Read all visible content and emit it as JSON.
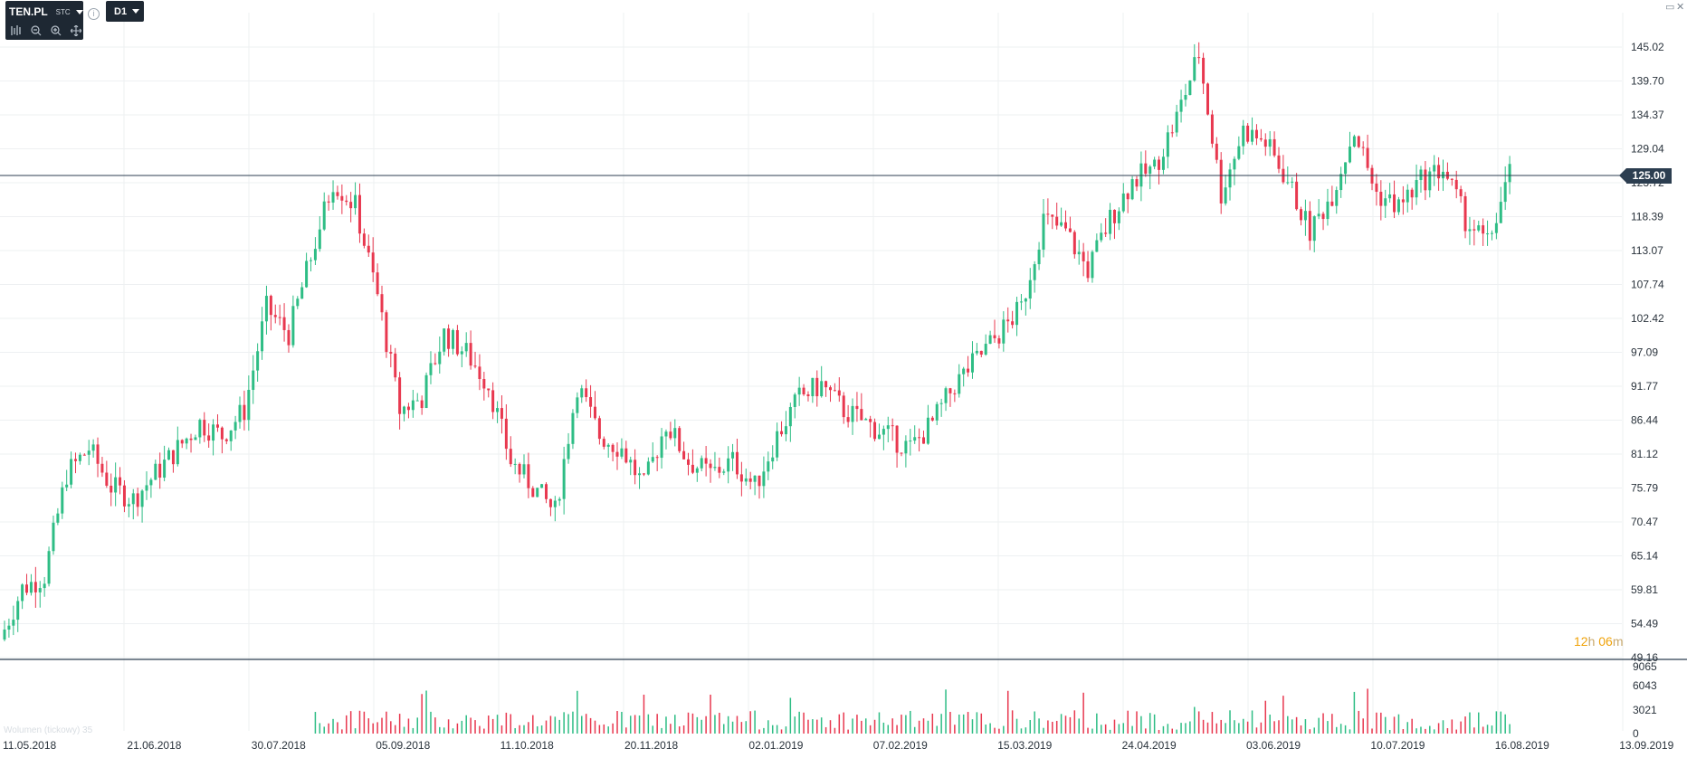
{
  "symbol": {
    "ticker": "TEN.PL",
    "type": "STC"
  },
  "timeframe": "D1",
  "current_price": "125.00",
  "timer": {
    "hours": "12",
    "hours_unit": "h",
    "minutes": "06",
    "minutes_unit": "m"
  },
  "volume_label": "Wolumen (tickowy) 35",
  "price_axis": [
    "145.02",
    "139.70",
    "134.37",
    "129.04",
    "123.72",
    "118.39",
    "113.07",
    "107.74",
    "102.42",
    "97.09",
    "91.77",
    "86.44",
    "81.12",
    "75.79",
    "70.47",
    "65.14",
    "59.81",
    "54.49",
    "49.16"
  ],
  "volume_axis": [
    "9065",
    "6043",
    "3021",
    "0"
  ],
  "date_axis": [
    "11.05.2018",
    "21.06.2018",
    "30.07.2018",
    "05.09.2018",
    "11.10.2018",
    "20.11.2018",
    "02.01.2019",
    "07.02.2019",
    "15.03.2019",
    "24.04.2019",
    "03.06.2019",
    "10.07.2019",
    "16.08.2019",
    "13.09.2019"
  ],
  "colors": {
    "up": "#2ebd85",
    "down": "#e8384f",
    "grid": "#eef0f2",
    "axis_text": "#2a333c",
    "line": "#2c3e50"
  },
  "icons": [
    "chart-type-icon",
    "zoom-out-icon",
    "zoom-in-icon",
    "move-icon",
    "info-icon",
    "minimize-icon",
    "close-icon"
  ],
  "chart_data": {
    "type": "candlestick",
    "price_range": [
      49.16,
      145.02
    ],
    "volume_range": [
      0,
      9065
    ],
    "last_price": 125.0,
    "close_series": [
      {
        "date": "11.05.2018",
        "close": 52
      },
      {
        "date": "18.05.2018",
        "close": 60
      },
      {
        "date": "25.05.2018",
        "close": 62
      },
      {
        "date": "01.06.2018",
        "close": 78
      },
      {
        "date": "08.06.2018",
        "close": 82
      },
      {
        "date": "15.06.2018",
        "close": 76
      },
      {
        "date": "21.06.2018",
        "close": 74
      },
      {
        "date": "28.06.2018",
        "close": 78
      },
      {
        "date": "05.07.2018",
        "close": 82
      },
      {
        "date": "12.07.2018",
        "close": 86
      },
      {
        "date": "19.07.2018",
        "close": 84
      },
      {
        "date": "26.07.2018",
        "close": 88
      },
      {
        "date": "30.07.2018",
        "close": 104
      },
      {
        "date": "06.08.2018",
        "close": 100
      },
      {
        "date": "13.08.2018",
        "close": 112
      },
      {
        "date": "20.08.2018",
        "close": 124
      },
      {
        "date": "27.08.2018",
        "close": 120
      },
      {
        "date": "31.08.2018",
        "close": 106
      },
      {
        "date": "05.09.2018",
        "close": 88
      },
      {
        "date": "12.09.2018",
        "close": 90
      },
      {
        "date": "19.09.2018",
        "close": 100
      },
      {
        "date": "26.09.2018",
        "close": 97
      },
      {
        "date": "03.10.2018",
        "close": 92
      },
      {
        "date": "11.10.2018",
        "close": 80
      },
      {
        "date": "18.10.2018",
        "close": 76
      },
      {
        "date": "25.10.2018",
        "close": 72
      },
      {
        "date": "01.11.2018",
        "close": 92
      },
      {
        "date": "08.11.2018",
        "close": 84
      },
      {
        "date": "15.11.2018",
        "close": 82
      },
      {
        "date": "20.11.2018",
        "close": 76
      },
      {
        "date": "27.11.2018",
        "close": 86
      },
      {
        "date": "04.12.2018",
        "close": 80
      },
      {
        "date": "11.12.2018",
        "close": 78
      },
      {
        "date": "18.12.2018",
        "close": 80
      },
      {
        "date": "25.12.2018",
        "close": 76
      },
      {
        "date": "02.01.2019",
        "close": 84
      },
      {
        "date": "09.01.2019",
        "close": 90
      },
      {
        "date": "16.01.2019",
        "close": 92
      },
      {
        "date": "23.01.2019",
        "close": 88
      },
      {
        "date": "30.01.2019",
        "close": 86
      },
      {
        "date": "07.02.2019",
        "close": 84
      },
      {
        "date": "14.02.2019",
        "close": 82
      },
      {
        "date": "21.02.2019",
        "close": 86
      },
      {
        "date": "28.02.2019",
        "close": 92
      },
      {
        "date": "07.03.2019",
        "close": 96
      },
      {
        "date": "15.03.2019",
        "close": 100
      },
      {
        "date": "22.03.2019",
        "close": 104
      },
      {
        "date": "29.03.2019",
        "close": 118
      },
      {
        "date": "05.04.2019",
        "close": 116
      },
      {
        "date": "12.04.2019",
        "close": 110
      },
      {
        "date": "19.04.2019",
        "close": 118
      },
      {
        "date": "24.04.2019",
        "close": 124
      },
      {
        "date": "01.05.2019",
        "close": 126
      },
      {
        "date": "08.05.2019",
        "close": 134
      },
      {
        "date": "15.05.2019",
        "close": 144
      },
      {
        "date": "22.05.2019",
        "close": 122
      },
      {
        "date": "29.05.2019",
        "close": 132
      },
      {
        "date": "03.06.2019",
        "close": 130
      },
      {
        "date": "10.06.2019",
        "close": 124
      },
      {
        "date": "17.06.2019",
        "close": 116
      },
      {
        "date": "24.06.2019",
        "close": 122
      },
      {
        "date": "01.07.2019",
        "close": 132
      },
      {
        "date": "10.07.2019",
        "close": 122
      },
      {
        "date": "17.07.2019",
        "close": 120
      },
      {
        "date": "24.07.2019",
        "close": 124
      },
      {
        "date": "31.07.2019",
        "close": 126
      },
      {
        "date": "07.08.2019",
        "close": 118
      },
      {
        "date": "12.08.2019",
        "close": 114
      },
      {
        "date": "16.08.2019",
        "close": 125
      }
    ]
  }
}
